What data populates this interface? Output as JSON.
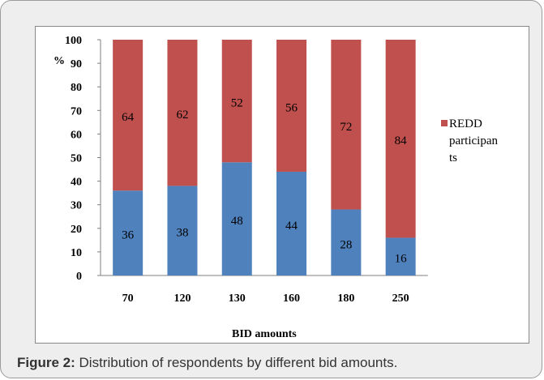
{
  "caption": {
    "label": "Figure 2:",
    "text": "Distribution of respondents by different bid amounts."
  },
  "chart_data": {
    "type": "bar",
    "stacked": true,
    "categories": [
      "70",
      "120",
      "130",
      "160",
      "180",
      "250"
    ],
    "series": [
      {
        "name": "",
        "values": [
          36,
          38,
          48,
          44,
          28,
          16
        ],
        "color": "#4f81bd"
      },
      {
        "name": "REDD participants",
        "values": [
          64,
          62,
          52,
          56,
          72,
          84
        ],
        "color": "#c0504d"
      }
    ],
    "title": "",
    "xlabel": "BID amounts",
    "ylabel": "%",
    "ylim": [
      0,
      100
    ],
    "yticks": [
      0,
      10,
      20,
      30,
      40,
      50,
      60,
      70,
      80,
      90,
      100
    ],
    "grid": false,
    "legend": {
      "position": "right",
      "lines": [
        "REDD",
        "participan",
        "ts"
      ],
      "color": "#c0504d"
    }
  }
}
